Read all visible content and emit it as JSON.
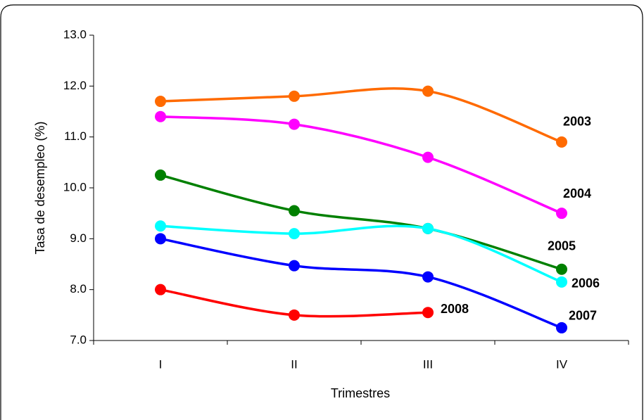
{
  "chart_data": {
    "type": "line",
    "x_label": "Trimestres",
    "y_label": "Tasa de desempleo (%)",
    "categories": [
      "I",
      "II",
      "III",
      "IV"
    ],
    "ylim": [
      7,
      13
    ],
    "yticks": [
      {
        "value": 7,
        "label": "7.0"
      },
      {
        "value": 8,
        "label": "8.0"
      },
      {
        "value": 9,
        "label": "9.0"
      },
      {
        "value": 10,
        "label": "10.0"
      },
      {
        "value": 11,
        "label": "11.0"
      },
      {
        "value": 12,
        "label": "12.0"
      },
      {
        "value": 13,
        "label": "13.0"
      }
    ],
    "grid": false,
    "series": [
      {
        "name": "2003",
        "color": "#ff6a00",
        "values": [
          11.7,
          11.8,
          11.9,
          10.9
        ]
      },
      {
        "name": "2004",
        "color": "#ff00ff",
        "values": [
          11.4,
          11.25,
          10.6,
          9.5
        ]
      },
      {
        "name": "2005",
        "color": "#008000",
        "values": [
          10.25,
          9.55,
          9.2,
          8.4
        ]
      },
      {
        "name": "2006",
        "color": "#00ffff",
        "values": [
          9.25,
          9.1,
          9.2,
          8.15
        ]
      },
      {
        "name": "2007",
        "color": "#0000ff",
        "values": [
          9.0,
          8.47,
          8.25,
          7.25
        ]
      },
      {
        "name": "2008",
        "color": "#ff0000",
        "values": [
          8.0,
          7.5,
          7.55,
          null
        ]
      }
    ]
  }
}
